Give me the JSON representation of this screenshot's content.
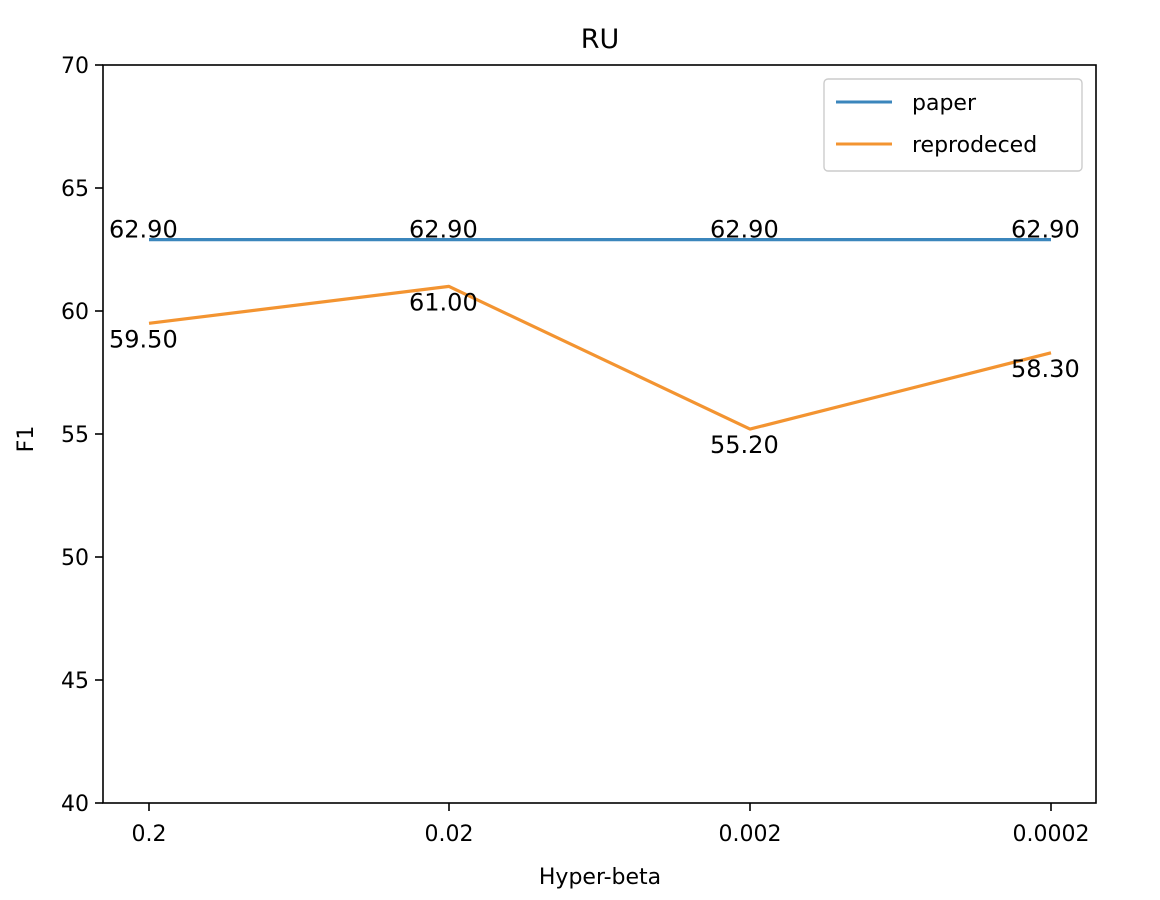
{
  "chart_data": {
    "type": "line",
    "title": "RU",
    "xlabel": "Hyper-beta",
    "ylabel": "F1",
    "categories": [
      "0.2",
      "0.02",
      "0.002",
      "0.0002"
    ],
    "ylim": [
      40,
      70
    ],
    "yticks": [
      40,
      45,
      50,
      55,
      60,
      65,
      70
    ],
    "grid": false,
    "legend_position": "top-right",
    "series": [
      {
        "name": "paper",
        "color": "#3b86bc",
        "values": [
          62.9,
          62.9,
          62.9,
          62.9
        ],
        "labels": [
          "62.90",
          "62.90",
          "62.90",
          "62.90"
        ]
      },
      {
        "name": "reprodeced",
        "color": "#f39431",
        "values": [
          59.5,
          61.0,
          55.2,
          58.3
        ],
        "labels": [
          "59.50",
          "61.00",
          "55.20",
          "58.30"
        ]
      }
    ]
  }
}
